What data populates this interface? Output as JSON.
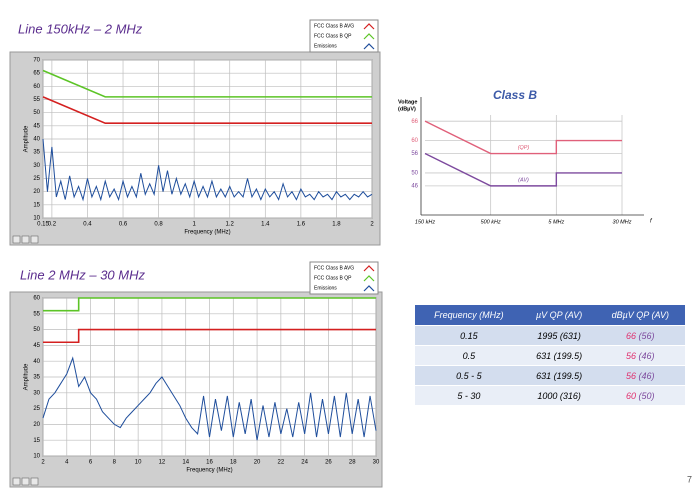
{
  "chart_data": [
    {
      "type": "line",
      "title": "Line 150kHz – 2 MHz",
      "xlabel": "Frequency (MHz)",
      "ylabel": "Amplitude",
      "xlim": [
        0.15,
        2
      ],
      "xticks": [
        0.15,
        0.2,
        0.4,
        0.6,
        0.8,
        1,
        1.2,
        1.4,
        1.6,
        1.8,
        2
      ],
      "ylim": [
        10,
        70
      ],
      "yticks": [
        10,
        15,
        20,
        25,
        30,
        35,
        40,
        45,
        50,
        55,
        60,
        65,
        70
      ],
      "grid": true,
      "legend": "top-right",
      "series": [
        {
          "name": "FCC Class B AVG",
          "color": "#d42020",
          "x": [
            0.15,
            0.5,
            2
          ],
          "values": [
            56,
            46,
            46
          ]
        },
        {
          "name": "FCC Class B QP",
          "color": "#5cc426",
          "x": [
            0.15,
            0.5,
            2
          ],
          "values": [
            66,
            56,
            56
          ]
        },
        {
          "name": "Emissions",
          "color": "#1f4e9c",
          "x": [
            0.15,
            0.175,
            0.2,
            0.225,
            0.25,
            0.275,
            0.3,
            0.325,
            0.35,
            0.375,
            0.4,
            0.425,
            0.45,
            0.475,
            0.5,
            0.525,
            0.55,
            0.575,
            0.6,
            0.625,
            0.65,
            0.675,
            0.7,
            0.725,
            0.75,
            0.775,
            0.8,
            0.825,
            0.85,
            0.875,
            0.9,
            0.925,
            0.95,
            0.975,
            1.0,
            1.025,
            1.05,
            1.075,
            1.1,
            1.125,
            1.15,
            1.175,
            1.2,
            1.225,
            1.25,
            1.275,
            1.3,
            1.325,
            1.35,
            1.375,
            1.4,
            1.425,
            1.45,
            1.475,
            1.5,
            1.525,
            1.55,
            1.575,
            1.6,
            1.625,
            1.65,
            1.675,
            1.7,
            1.725,
            1.75,
            1.775,
            1.8,
            1.825,
            1.85,
            1.875,
            1.9,
            1.925,
            1.95,
            1.975,
            2.0
          ],
          "values": [
            40,
            20,
            37,
            18,
            24,
            17,
            26,
            18,
            22,
            17,
            25,
            18,
            22,
            17,
            24,
            18,
            21,
            17,
            24,
            18,
            22,
            18,
            27,
            19,
            23,
            19,
            30,
            20,
            28,
            19,
            25,
            19,
            23,
            18,
            24,
            18,
            22,
            18,
            24,
            18,
            21,
            18,
            22,
            18,
            20,
            18,
            25,
            18,
            21,
            17,
            21,
            18,
            20,
            17,
            23,
            18,
            20,
            17,
            21,
            18,
            19,
            17,
            20,
            18,
            19,
            17,
            20,
            18,
            19,
            17,
            19,
            18,
            20,
            18,
            19
          ]
        }
      ]
    },
    {
      "type": "line",
      "title": "Line 2 MHz – 30 MHz",
      "xlabel": "Frequency (MHz)",
      "ylabel": "Amplitude",
      "xlim": [
        2,
        30
      ],
      "xticks": [
        2,
        4,
        6,
        8,
        10,
        12,
        14,
        16,
        18,
        20,
        22,
        24,
        26,
        28,
        30
      ],
      "ylim": [
        10,
        60
      ],
      "yticks": [
        10,
        15,
        20,
        25,
        30,
        35,
        40,
        45,
        50,
        55,
        60
      ],
      "grid": true,
      "legend": "top-right",
      "series": [
        {
          "name": "FCC Class B AVG",
          "color": "#d42020",
          "x": [
            2,
            5,
            5,
            30
          ],
          "values": [
            46,
            46,
            50,
            50
          ]
        },
        {
          "name": "FCC Class B QP",
          "color": "#5cc426",
          "x": [
            2,
            5,
            5,
            30
          ],
          "values": [
            56,
            56,
            60,
            60
          ]
        },
        {
          "name": "Emissions",
          "color": "#1f4e9c",
          "x": [
            2,
            2.5,
            3,
            3.5,
            4,
            4.5,
            5,
            5.5,
            6,
            6.5,
            7,
            7.5,
            8,
            8.5,
            9,
            9.5,
            10,
            10.5,
            11,
            11.5,
            12,
            12.5,
            13,
            13.5,
            14,
            14.5,
            15,
            15.5,
            16,
            16.5,
            17,
            17.5,
            18,
            18.5,
            19,
            19.5,
            20,
            20.5,
            21,
            21.5,
            22,
            22.5,
            23,
            23.5,
            24,
            24.5,
            25,
            25.5,
            26,
            26.5,
            27,
            27.5,
            28,
            28.5,
            29,
            29.5,
            30
          ],
          "values": [
            22,
            28,
            30,
            33,
            36,
            41,
            32,
            35,
            30,
            28,
            24,
            22,
            20,
            19,
            22,
            24,
            26,
            28,
            30,
            33,
            35,
            32,
            29,
            26,
            22,
            19,
            17,
            29,
            16,
            28,
            18,
            29,
            16,
            27,
            17,
            28,
            15,
            26,
            16,
            27,
            17,
            25,
            16,
            27,
            17,
            30,
            16,
            28,
            17,
            29,
            16,
            30,
            17,
            28,
            16,
            29,
            18
          ]
        }
      ]
    },
    {
      "type": "line",
      "title": "Class B",
      "xlabel": "f",
      "ylabel": [
        "Voltage",
        "(dBµV)"
      ],
      "xlim": [
        0,
        3
      ],
      "xticks": [
        {
          "value": 0,
          "label": "150 kHz"
        },
        {
          "value": 1,
          "label": "500 kHz"
        },
        {
          "value": 2,
          "label": "5 MHz"
        },
        {
          "value": 3,
          "label": "30 MHz"
        }
      ],
      "ylim": [
        37,
        71
      ],
      "yticks": [
        46,
        50,
        56,
        60,
        66
      ],
      "ytick_colors": [
        "#7d4a9e",
        "#7d4a9e",
        "#7d4a9e",
        "#e0607a",
        "#e0607a"
      ],
      "grid": true,
      "series": [
        {
          "name": "(QP)",
          "color": "#e0607a",
          "x": [
            0,
            1,
            2,
            2,
            3
          ],
          "values": [
            66,
            56,
            56,
            60,
            60
          ]
        },
        {
          "name": "(AV)",
          "color": "#7d4a9e",
          "x": [
            0,
            1,
            2,
            2,
            3
          ],
          "values": [
            56,
            46,
            46,
            50,
            50
          ]
        }
      ]
    }
  ],
  "table": {
    "header": [
      "Frequency  (MHz)",
      "µV QP (AV)",
      "dBµV QP (AV)"
    ],
    "rows": [
      [
        "0.15",
        "1995 (631)",
        [
          "66",
          "(56)"
        ]
      ],
      [
        "0.5",
        "631 (199.5)",
        [
          "56",
          "(46)"
        ]
      ],
      [
        "0.5 - 5",
        "631 (199.5)",
        [
          "56",
          "(46)"
        ]
      ],
      [
        "5 - 30",
        "1000 (316)",
        [
          "60",
          "(50)"
        ]
      ]
    ]
  },
  "page_number": "7"
}
